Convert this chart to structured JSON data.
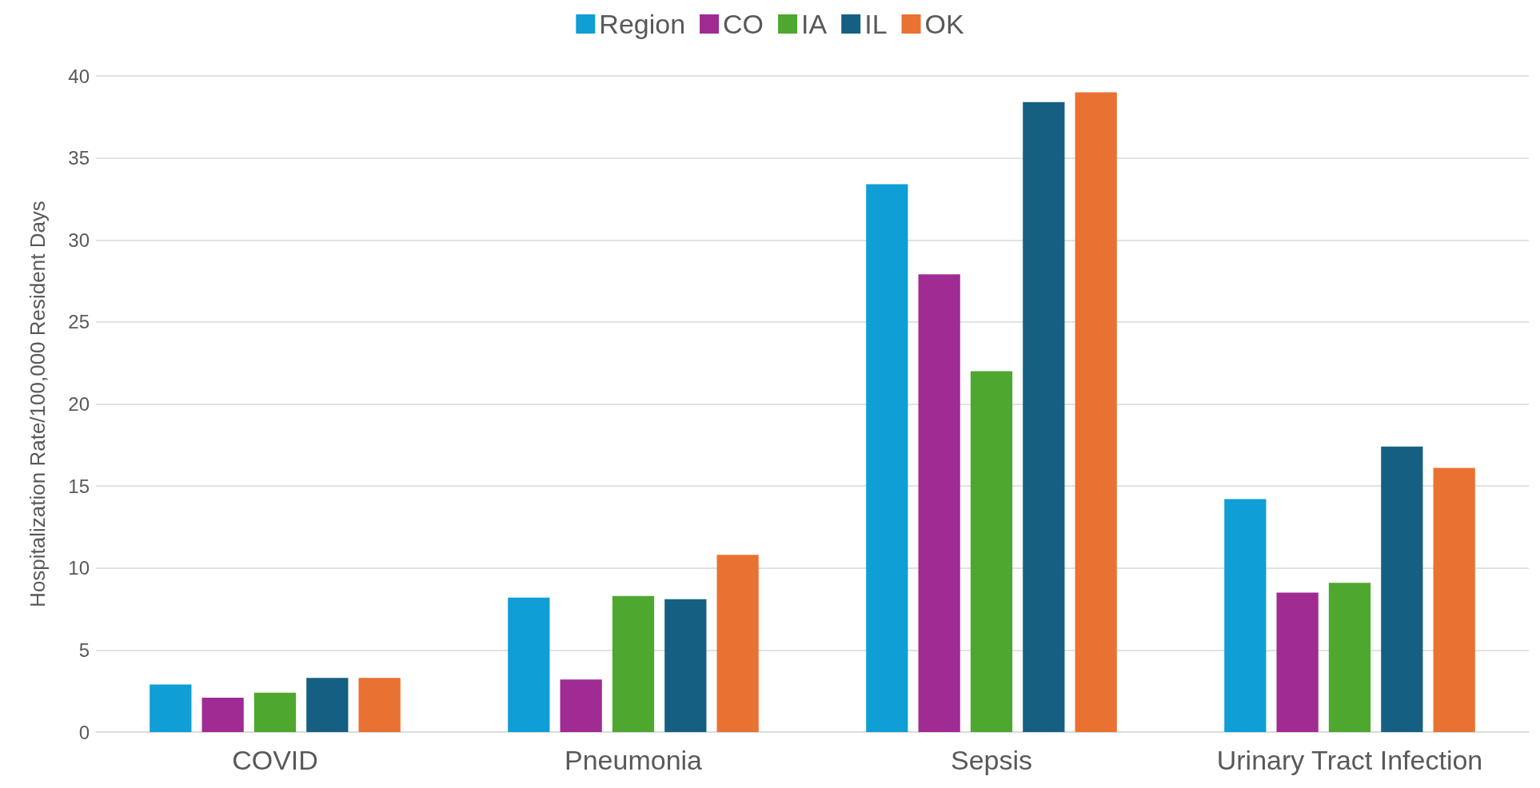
{
  "chart_data": {
    "type": "bar",
    "ylabel": "Hospitalization Rate/100,000 Resident Days",
    "categories": [
      "COVID",
      "Pneumonia",
      "Sepsis",
      "Urinary Tract Infection"
    ],
    "series": [
      {
        "name": "Region",
        "color": "#0f9ed5",
        "values": [
          2.9,
          8.2,
          33.4,
          14.2
        ]
      },
      {
        "name": "CO",
        "color": "#a02b93",
        "values": [
          2.1,
          3.2,
          27.9,
          8.5
        ]
      },
      {
        "name": "IA",
        "color": "#4ea72e",
        "values": [
          2.4,
          8.3,
          22.0,
          9.1
        ]
      },
      {
        "name": "IL",
        "color": "#156082",
        "values": [
          3.3,
          8.1,
          38.4,
          17.4
        ]
      },
      {
        "name": "OK",
        "color": "#e97132",
        "values": [
          3.3,
          10.8,
          39.0,
          16.1
        ]
      }
    ],
    "ylim": [
      0,
      40
    ],
    "yticks": [
      0,
      5,
      10,
      15,
      20,
      25,
      30,
      35,
      40
    ],
    "grid": "y",
    "legend": "top"
  }
}
